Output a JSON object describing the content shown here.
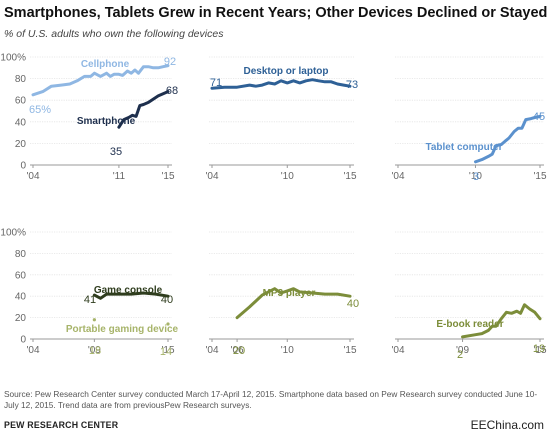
{
  "title": "Smartphones, Tablets Grew in Recent Years; Other Devices Declined or Stayed Flat",
  "subtitle": "% of U.S. adults who own the following devices",
  "source": "Source: Pew Research Center survey conducted March 17-April 12, 2015. Smartphone data based on Pew Research survey conducted June 10-July 12, 2015. Trend data are from previousPew Research surveys.",
  "org": "PEW RESEARCH CENTER",
  "watermark": "EEChina.com",
  "colors": {
    "light_blue": "#8fb7e3",
    "dark_navy": "#1e2f4d",
    "mid_blue": "#2e6096",
    "sky_blue": "#5b91cd",
    "olive_dark": "#2f3d1e",
    "olive_light": "#a7b46a",
    "olive_mid": "#7c8d3a"
  },
  "chart_data": [
    {
      "type": "line",
      "y_tick_labels": [
        "0",
        "20",
        "40",
        "60",
        "80",
        "100%"
      ],
      "x_tick_labels": [
        "'04",
        "'11",
        "'15"
      ],
      "ylim": [
        0,
        100
      ],
      "series": [
        {
          "name": "Cellphone",
          "color": "#8fb7e3",
          "start_label": "65%",
          "end_label": "92",
          "points": [
            [
              2004.0,
              65
            ],
            [
              2004.8,
              68
            ],
            [
              2005.5,
              73
            ],
            [
              2006.3,
              74
            ],
            [
              2007.0,
              75
            ],
            [
              2007.6,
              78
            ],
            [
              2008.2,
              82
            ],
            [
              2008.7,
              82
            ],
            [
              2009.0,
              85
            ],
            [
              2009.5,
              82
            ],
            [
              2010.0,
              85
            ],
            [
              2010.3,
              82
            ],
            [
              2010.6,
              84
            ],
            [
              2011.0,
              84
            ],
            [
              2011.3,
              83
            ],
            [
              2011.7,
              87
            ],
            [
              2012.0,
              85
            ],
            [
              2012.3,
              88
            ],
            [
              2012.6,
              85
            ],
            [
              2013.0,
              91
            ],
            [
              2013.4,
              91
            ],
            [
              2013.8,
              90
            ],
            [
              2014.2,
              90
            ],
            [
              2014.6,
              91
            ],
            [
              2015.0,
              92
            ]
          ]
        },
        {
          "name": "Smartphone",
          "color": "#1e2f4d",
          "start_label": "35",
          "end_label": "68",
          "points": [
            [
              2011.0,
              35
            ],
            [
              2011.4,
              42
            ],
            [
              2011.8,
              44
            ],
            [
              2012.1,
              46
            ],
            [
              2012.4,
              45
            ],
            [
              2012.7,
              55
            ],
            [
              2013.0,
              56
            ],
            [
              2013.4,
              58
            ],
            [
              2013.8,
              61
            ],
            [
              2014.2,
              64
            ],
            [
              2014.6,
              66
            ],
            [
              2015.0,
              68
            ]
          ]
        }
      ]
    },
    {
      "type": "line",
      "y_tick_labels": [],
      "x_tick_labels": [
        "'04",
        "'10",
        "'15"
      ],
      "ylim": [
        0,
        100
      ],
      "series": [
        {
          "name": "Desktop or laptop",
          "color": "#2e6096",
          "start_label": "71",
          "end_label": "73",
          "points": [
            [
              2004.0,
              71
            ],
            [
              2005.0,
              72
            ],
            [
              2006.0,
              72
            ],
            [
              2007.0,
              74
            ],
            [
              2007.5,
              73
            ],
            [
              2008.0,
              74
            ],
            [
              2008.5,
              76
            ],
            [
              2009.0,
              75
            ],
            [
              2009.5,
              78
            ],
            [
              2010.0,
              76
            ],
            [
              2010.5,
              78
            ],
            [
              2011.0,
              76
            ],
            [
              2011.5,
              78
            ],
            [
              2012.0,
              79
            ],
            [
              2012.5,
              78
            ],
            [
              2013.0,
              77
            ],
            [
              2013.5,
              77
            ],
            [
              2014.0,
              75
            ],
            [
              2014.5,
              74
            ],
            [
              2015.0,
              73
            ]
          ]
        }
      ]
    },
    {
      "type": "line",
      "y_tick_labels": [],
      "x_tick_labels": [
        "'04",
        "'10",
        "'15"
      ],
      "ylim": [
        0,
        100
      ],
      "series": [
        {
          "name": "Tablet computer",
          "color": "#5b91cd",
          "start_label": "3",
          "end_label": "45",
          "points": [
            [
              2010.0,
              3
            ],
            [
              2010.5,
              5
            ],
            [
              2011.0,
              8
            ],
            [
              2011.3,
              10
            ],
            [
              2011.6,
              18
            ],
            [
              2012.0,
              19
            ],
            [
              2012.3,
              22
            ],
            [
              2012.6,
              25
            ],
            [
              2013.0,
              31
            ],
            [
              2013.3,
              34
            ],
            [
              2013.6,
              34
            ],
            [
              2013.9,
              42
            ],
            [
              2014.3,
              43
            ],
            [
              2014.6,
              44
            ],
            [
              2015.0,
              45
            ]
          ]
        }
      ]
    },
    {
      "type": "line",
      "y_tick_labels": [
        "0",
        "20",
        "40",
        "60",
        "80",
        "100%"
      ],
      "x_tick_labels": [
        "'04",
        "'09",
        "'15"
      ],
      "ylim": [
        0,
        100
      ],
      "series": [
        {
          "name": "Game console",
          "color": "#2f3d1e",
          "start_label": "41",
          "end_label": "40",
          "points": [
            [
              2009.0,
              41
            ],
            [
              2009.5,
              38
            ],
            [
              2010.0,
              42
            ],
            [
              2011.0,
              42
            ],
            [
              2012.0,
              42
            ],
            [
              2013.0,
              43
            ],
            [
              2014.0,
              42
            ],
            [
              2015.0,
              40
            ]
          ]
        },
        {
          "name": "Portable gaming device",
          "color": "#a7b46a",
          "start_label": "18",
          "end_label": "14",
          "points": [
            [
              2009.0,
              18
            ],
            [
              2015.0,
              14
            ]
          ]
        }
      ]
    },
    {
      "type": "line",
      "y_tick_labels": [],
      "x_tick_labels": [
        "'04",
        "'06",
        "'10",
        "'15"
      ],
      "ylim": [
        0,
        100
      ],
      "series": [
        {
          "name": "MP3 player",
          "color": "#7c8d3a",
          "start_label": "20",
          "end_label": "40",
          "points": [
            [
              2006.0,
              20
            ],
            [
              2007.0,
              30
            ],
            [
              2008.0,
              41
            ],
            [
              2009.0,
              47
            ],
            [
              2009.5,
              43
            ],
            [
              2010.0,
              45
            ],
            [
              2010.5,
              47
            ],
            [
              2011.0,
              44
            ],
            [
              2012.0,
              43
            ],
            [
              2013.0,
              42
            ],
            [
              2014.0,
              42
            ],
            [
              2015.0,
              40
            ]
          ]
        }
      ]
    },
    {
      "type": "line",
      "y_tick_labels": [],
      "x_tick_labels": [
        "'04",
        "'09",
        "'15"
      ],
      "ylim": [
        0,
        100
      ],
      "series": [
        {
          "name": "E-book reader",
          "color": "#7c8d3a",
          "start_label": "2",
          "end_label": "19",
          "points": [
            [
              2009.0,
              2
            ],
            [
              2010.0,
              4
            ],
            [
              2010.5,
              5
            ],
            [
              2011.0,
              8
            ],
            [
              2011.3,
              12
            ],
            [
              2011.6,
              12
            ],
            [
              2012.0,
              19
            ],
            [
              2012.4,
              25
            ],
            [
              2012.8,
              24
            ],
            [
              2013.2,
              26
            ],
            [
              2013.5,
              24
            ],
            [
              2013.8,
              32
            ],
            [
              2014.2,
              28
            ],
            [
              2014.6,
              25
            ],
            [
              2015.0,
              19
            ]
          ]
        }
      ]
    }
  ]
}
